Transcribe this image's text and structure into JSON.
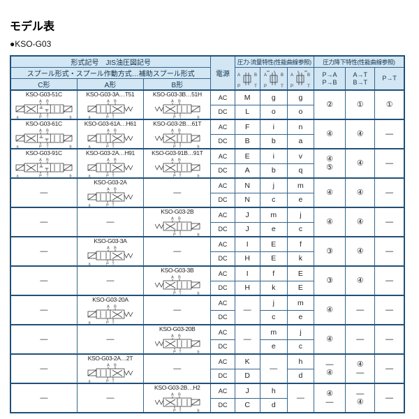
{
  "title": "モデル表",
  "series": "●KSO-G03",
  "colors": {
    "header_bg": "#d2e6f4",
    "border": "#1f5078",
    "text": "#222222"
  },
  "header": {
    "type_row": "形式記号　JIS油圧図記号",
    "spool_row": "スプール形式・スプール作動方式…補助スプール形式",
    "col_c": "C形",
    "col_a": "A形",
    "col_b": "B形",
    "power": "電源",
    "flow_title": "圧力-流量特性(性能曲線参照)",
    "drop_title": "圧力降下特性(性能曲線参照)",
    "flow_symbols": [
      "center-closed-symbol",
      "center-variant-ab-symbol",
      "center-variant-pt-symbol"
    ],
    "drop_cols": [
      [
        "P→A",
        "P→B"
      ],
      [
        "A→T",
        "B→T"
      ],
      [
        "P→T"
      ]
    ]
  },
  "valve_ports": {
    "top": [
      "A",
      "B"
    ],
    "bottom": [
      "P",
      "T"
    ],
    "side": [
      "a",
      "b"
    ]
  },
  "labels": {
    "ac": "AC",
    "dc": "DC",
    "dash": "—"
  },
  "rows": [
    {
      "c": {
        "model": "KSO-G03-51C",
        "sym": "C"
      },
      "a": {
        "model": "KSO-G03-3A…T51",
        "sym": "A"
      },
      "b": {
        "model": "KSO-G03-3B…51H",
        "sym": "B"
      },
      "flow": [
        {
          "ac": "M",
          "dc": "L"
        },
        {
          "ac": "g",
          "dc": "o"
        },
        {
          "ac": "g",
          "dc": "o"
        }
      ],
      "drops": [
        {
          "v": "②"
        },
        {
          "v": "①"
        },
        {
          "v": "①"
        }
      ]
    },
    {
      "c": {
        "model": "KSO-G03-61C",
        "sym": "C"
      },
      "a": {
        "model": "KSO-G03-61A…H61",
        "sym": "A"
      },
      "b": {
        "model": "KSO-G03-2B…61T",
        "sym": "B"
      },
      "flow": [
        {
          "ac": "F",
          "dc": "B"
        },
        {
          "ac": "i",
          "dc": "b"
        },
        {
          "ac": "n",
          "dc": "a"
        }
      ],
      "drops": [
        {
          "v": "④"
        },
        {
          "v": "④"
        },
        {
          "v": "—"
        }
      ]
    },
    {
      "c": {
        "model": "KSO-G03-91C",
        "sym": "C"
      },
      "a": {
        "model": "KSO-G03-2A…H91",
        "sym": "A"
      },
      "b": {
        "model": "KSO-G03-91B…91T",
        "sym": "B"
      },
      "flow": [
        {
          "ac": "E",
          "dc": "A"
        },
        {
          "ac": "i",
          "dc": "b"
        },
        {
          "ac": "v",
          "dc": "q"
        }
      ],
      "drops": [
        {
          "top": "④",
          "bottom": "⑤"
        },
        {
          "v": "④"
        },
        {
          "v": "—"
        }
      ]
    },
    {
      "c": {
        "model": null
      },
      "a": {
        "model": "KSO-G03-2A",
        "sym": "A"
      },
      "b": {
        "model": null
      },
      "flow": [
        {
          "ac": "N",
          "dc": "N"
        },
        {
          "ac": "j",
          "dc": "c"
        },
        {
          "ac": "m",
          "dc": "e"
        }
      ],
      "drops": [
        {
          "v": "④"
        },
        {
          "v": "④"
        },
        {
          "v": "—"
        }
      ]
    },
    {
      "c": {
        "model": null
      },
      "a": {
        "model": null
      },
      "b": {
        "model": "KSO-G03-2B",
        "sym": "B"
      },
      "flow": [
        {
          "ac": "J",
          "dc": "J"
        },
        {
          "ac": "m",
          "dc": "e"
        },
        {
          "ac": "j",
          "dc": "c"
        }
      ],
      "drops": [
        {
          "v": "④"
        },
        {
          "v": "④"
        },
        {
          "v": "—"
        }
      ]
    },
    {
      "c": {
        "model": null
      },
      "a": {
        "model": "KSO-G03-3A",
        "sym": "A"
      },
      "b": {
        "model": null
      },
      "flow": [
        {
          "ac": "I",
          "dc": "H"
        },
        {
          "ac": "E",
          "dc": "E"
        },
        {
          "ac": "f",
          "dc": "k"
        }
      ],
      "drops": [
        {
          "v": "③"
        },
        {
          "v": "④"
        },
        {
          "v": "—"
        }
      ]
    },
    {
      "c": {
        "model": null
      },
      "a": {
        "model": null
      },
      "b": {
        "model": "KSO-G03-3B",
        "sym": "B"
      },
      "flow": [
        {
          "ac": "I",
          "dc": "H"
        },
        {
          "ac": "f",
          "dc": "k"
        },
        {
          "ac": "E",
          "dc": "E"
        }
      ],
      "drops": [
        {
          "v": "③"
        },
        {
          "v": "④"
        },
        {
          "v": "—"
        }
      ]
    },
    {
      "c": {
        "model": null
      },
      "a": {
        "model": "KSO-G03-20A",
        "sym": "A"
      },
      "b": {
        "model": null
      },
      "flow": [
        {
          "span": true
        },
        {
          "ac": "j",
          "dc": "c"
        },
        {
          "ac": "m",
          "dc": "e"
        }
      ],
      "drops": [
        {
          "v": "④"
        },
        {
          "v": "—"
        },
        {
          "v": "—"
        }
      ]
    },
    {
      "c": {
        "model": null
      },
      "a": {
        "model": null
      },
      "b": {
        "model": "KSO-G03-20B",
        "sym": "B"
      },
      "flow": [
        {
          "span": true
        },
        {
          "ac": "m",
          "dc": "e"
        },
        {
          "ac": "j",
          "dc": "c"
        }
      ],
      "drops": [
        {
          "v": "④"
        },
        {
          "v": "—"
        },
        {
          "v": "—"
        }
      ]
    },
    {
      "c": {
        "model": null
      },
      "a": {
        "model": "KSO-G03-2A…2T",
        "sym": "A"
      },
      "b": {
        "model": null
      },
      "flow": [
        {
          "ac": "K",
          "dc": "D"
        },
        {
          "span": true
        },
        {
          "ac": "h",
          "dc": "d"
        }
      ],
      "drops": [
        {
          "top": "—",
          "bottom": "④"
        },
        {
          "top": "④",
          "bottom": "—"
        },
        {
          "v": "—"
        }
      ]
    },
    {
      "c": {
        "model": null
      },
      "a": {
        "model": null
      },
      "b": {
        "model": "KSO-G03-2B…H2",
        "sym": "B"
      },
      "flow": [
        {
          "ac": "J",
          "dc": "C"
        },
        {
          "ac": "h",
          "dc": "d"
        },
        {
          "span": true
        }
      ],
      "drops": [
        {
          "top": "④",
          "bottom": "—"
        },
        {
          "top": "—",
          "bottom": "④"
        },
        {
          "v": "—"
        }
      ]
    }
  ]
}
